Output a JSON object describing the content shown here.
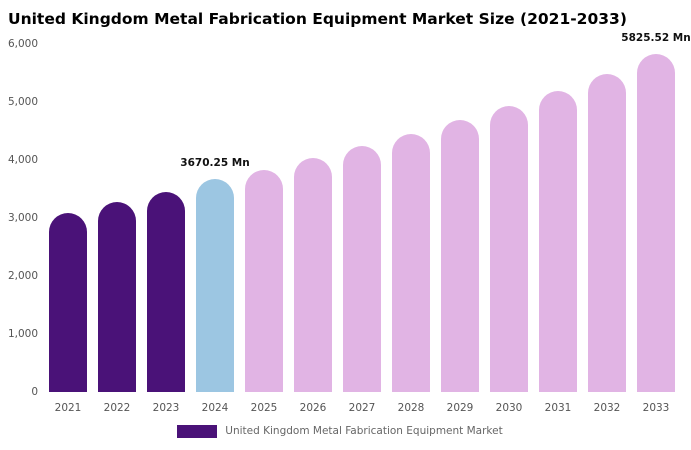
{
  "chart_data": {
    "type": "bar",
    "title": "United Kingdom Metal Fabrication Equipment Market Size (2021-2033)",
    "categories": [
      "2021",
      "2022",
      "2023",
      "2024",
      "2025",
      "2026",
      "2027",
      "2028",
      "2029",
      "2030",
      "2031",
      "2032",
      "2033"
    ],
    "values": [
      3080,
      3270,
      3445,
      3670.25,
      3825,
      4030,
      4235,
      4455,
      4685,
      4935,
      5190,
      5485,
      5825.52
    ],
    "bar_colors": [
      "#4a1278",
      "#4a1278",
      "#4a1278",
      "#9cc6e2",
      "#e1b4e4",
      "#e1b4e4",
      "#e1b4e4",
      "#e1b4e4",
      "#e1b4e4",
      "#e1b4e4",
      "#e1b4e4",
      "#e1b4e4",
      "#e1b4e4"
    ],
    "value_labels": {
      "3": "3670.25 Mn",
      "12": "5825.52 Mn"
    },
    "unit": "Mn",
    "ylim": [
      0,
      6000
    ],
    "y_ticks": [
      {
        "value": 6000,
        "label": "6,000"
      },
      {
        "value": 5000,
        "label": "5,000"
      },
      {
        "value": 4000,
        "label": "4,000"
      },
      {
        "value": 3000,
        "label": "3,000"
      },
      {
        "value": 2000,
        "label": "2,000"
      },
      {
        "value": 1000,
        "label": "1,000"
      },
      {
        "value": 0,
        "label": "0"
      }
    ],
    "grid": false,
    "legend": {
      "position": "bottom",
      "label": "United Kingdom Metal Fabrication Equipment Market",
      "swatch_color": "#4a1278"
    },
    "colors": {
      "historical": "#4a1278",
      "highlight_current_year": "#9cc6e2",
      "forecast": "#e1b4e4"
    }
  }
}
